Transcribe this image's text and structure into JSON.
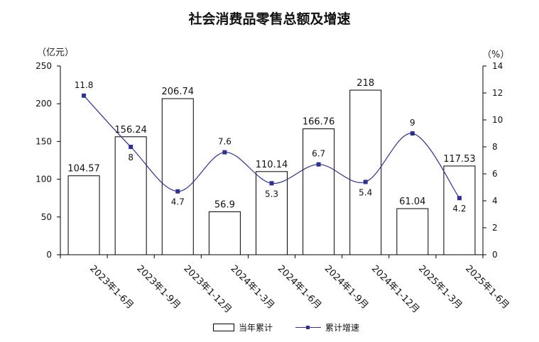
{
  "chart_data": {
    "type": "bar",
    "title": "社会消费品零售总额及增速",
    "left_unit": "（亿元）",
    "right_unit": "（%）",
    "categories": [
      "2023年1-6月",
      "2023年1-9月",
      "2023年1-12月",
      "2024年1-3月",
      "2024年1-6月",
      "2024年1-9月",
      "2024年1-12月",
      "2025年1-3月",
      "2025年1-6月"
    ],
    "series": [
      {
        "name": "当年累计",
        "type": "bar",
        "axis": "left",
        "values": [
          104.57,
          156.24,
          206.74,
          56.9,
          110.14,
          166.76,
          218,
          61.04,
          117.53
        ],
        "labels": [
          "104.57",
          "156.24",
          "206.74",
          "56.9",
          "110.14",
          "166.76",
          "218",
          "61.04",
          "117.53"
        ]
      },
      {
        "name": "累计增速",
        "type": "line",
        "axis": "right",
        "smooth": true,
        "color": "#2e3192",
        "values": [
          11.8,
          8,
          4.7,
          7.6,
          5.3,
          6.7,
          5.4,
          9,
          4.2
        ],
        "labels": [
          "11.8",
          "8",
          "4.7",
          "7.6",
          "5.3",
          "6.7",
          "5.4",
          "9",
          "4.2"
        ]
      }
    ],
    "y_left": {
      "min": 0,
      "max": 250,
      "ticks": [
        "0",
        "50",
        "100",
        "150",
        "200",
        "250"
      ]
    },
    "y_right": {
      "min": 0,
      "max": 14,
      "ticks": [
        "0",
        "2",
        "4",
        "6",
        "8",
        "10",
        "12",
        "14"
      ]
    },
    "grid": false,
    "legend_position": "bottom"
  }
}
